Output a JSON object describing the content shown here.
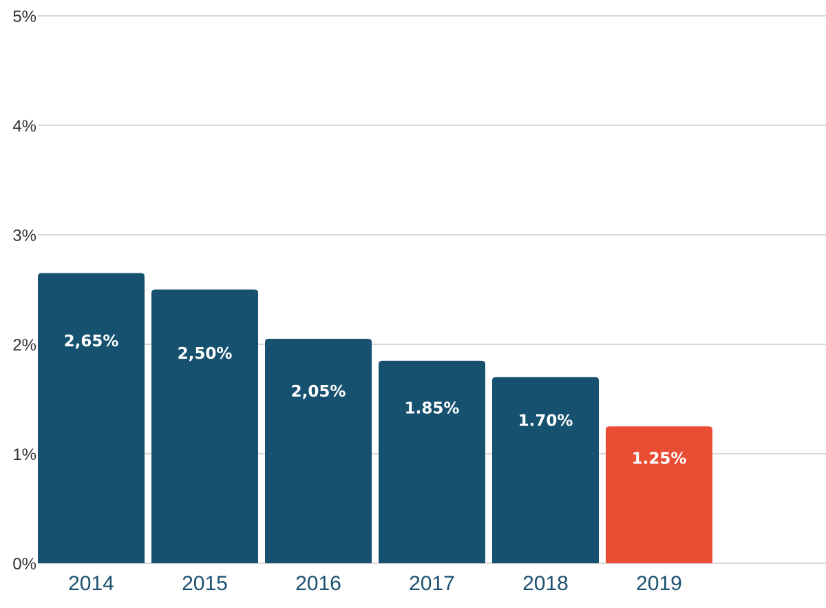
{
  "chart_data": {
    "type": "bar",
    "categories": [
      "2014",
      "2015",
      "2016",
      "2017",
      "2018",
      "2019"
    ],
    "values": [
      2.65,
      2.5,
      2.05,
      1.85,
      1.7,
      1.25
    ],
    "value_labels": [
      "2,65%",
      "2,50%",
      "2,05%",
      "1.85%",
      "1.70%",
      "1.25%"
    ],
    "bar_colors": [
      "#16516f",
      "#16516f",
      "#16516f",
      "#16516f",
      "#16516f",
      "#e94e35"
    ],
    "yticks": [
      0,
      1,
      2,
      3,
      4,
      5
    ],
    "ytick_labels": [
      "0%",
      "1%",
      "2%",
      "3%",
      "4%",
      "5%"
    ],
    "ylim": [
      0,
      5
    ],
    "grid": true,
    "title": "",
    "xlabel": "",
    "ylabel": ""
  }
}
